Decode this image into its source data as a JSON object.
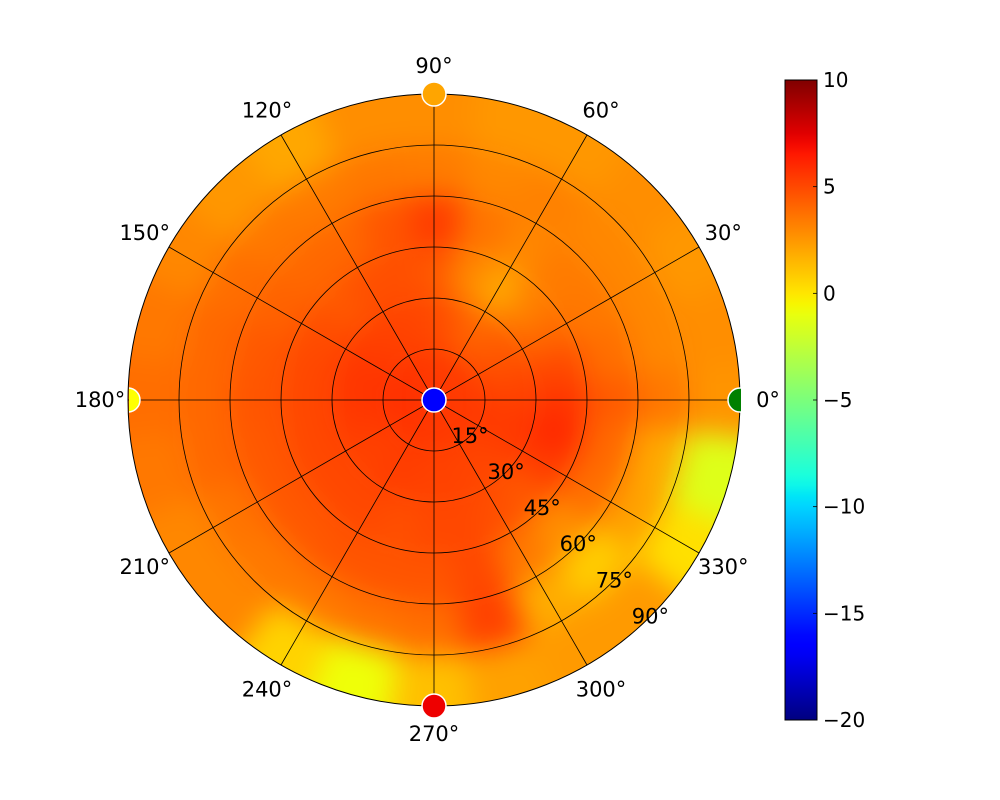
{
  "chart_data": {
    "type": "heatmap",
    "projection": "polar",
    "grid": true,
    "rlim": [
      0,
      90
    ],
    "theta_ticks": [
      0,
      30,
      60,
      90,
      120,
      150,
      180,
      210,
      240,
      270,
      300,
      330
    ],
    "theta_tick_labels": [
      "0°",
      "30°",
      "60°",
      "90°",
      "120°",
      "150°",
      "180°",
      "210°",
      "240°",
      "270°",
      "300°",
      "330°"
    ],
    "r_ticks": [
      15,
      30,
      45,
      60,
      75,
      90
    ],
    "r_tick_labels": [
      "15°",
      "30°",
      "45°",
      "60°",
      "75°",
      "90°"
    ],
    "colormap": "jet",
    "clim": [
      -20,
      10
    ],
    "colorbar": {
      "location": "right",
      "ticks": [
        10,
        5,
        0,
        -5,
        -10,
        -15,
        -20
      ],
      "tick_labels": [
        "10",
        "5",
        "0",
        "−5",
        "−10",
        "−15",
        "−20"
      ]
    },
    "theta_centers": [
      0,
      15,
      30,
      45,
      60,
      75,
      90,
      105,
      120,
      135,
      150,
      165,
      180,
      195,
      210,
      225,
      240,
      255,
      270,
      285,
      300,
      315,
      330,
      345
    ],
    "r_centers": [
      7.5,
      22.5,
      37.5,
      52.5,
      67.5,
      82.5
    ],
    "values": [
      [
        5.5,
        5.5,
        5.4,
        5.4,
        5.4,
        5.5,
        5.5,
        5.5,
        5.6,
        5.6,
        5.7,
        5.8,
        5.8,
        5.8,
        5.7,
        5.6,
        5.6,
        5.6,
        5.5,
        5.5,
        5.5,
        5.5,
        5.5,
        5.6
      ],
      [
        5.2,
        5.0,
        4.6,
        4.4,
        4.0,
        4.5,
        5.0,
        5.1,
        5.2,
        5.3,
        5.5,
        5.6,
        5.6,
        5.5,
        5.3,
        5.2,
        5.4,
        5.3,
        5.2,
        5.2,
        5.1,
        5.1,
        5.4,
        5.5
      ],
      [
        5.6,
        5.0,
        4.0,
        3.2,
        2.0,
        3.0,
        4.5,
        4.8,
        4.8,
        4.5,
        4.9,
        5.0,
        5.0,
        5.0,
        5.0,
        5.0,
        5.0,
        4.8,
        5.0,
        5.0,
        4.8,
        4.5,
        5.4,
        6.0
      ],
      [
        4.4,
        3.8,
        3.5,
        3.4,
        3.0,
        3.6,
        5.4,
        4.6,
        4.0,
        4.0,
        4.2,
        4.5,
        4.6,
        4.5,
        4.5,
        4.5,
        4.6,
        4.6,
        4.6,
        5.0,
        3.5,
        2.8,
        3.8,
        4.0
      ],
      [
        3.5,
        3.0,
        3.0,
        3.0,
        3.2,
        3.0,
        3.4,
        3.5,
        3.4,
        3.5,
        3.8,
        4.0,
        4.0,
        4.0,
        3.6,
        3.5,
        3.5,
        3.6,
        3.8,
        5.2,
        1.8,
        0.8,
        2.2,
        2.0
      ],
      [
        2.6,
        2.8,
        2.5,
        2.8,
        2.5,
        2.5,
        2.8,
        2.8,
        2.0,
        2.5,
        3.0,
        3.5,
        3.8,
        3.5,
        3.0,
        3.0,
        0.6,
        -0.8,
        1.2,
        2.2,
        2.4,
        2.4,
        0.2,
        -1.4
      ]
    ],
    "markers": [
      {
        "theta": 90,
        "r": 90,
        "color": "#ffa500"
      },
      {
        "theta": 0,
        "r": 90,
        "color": "#008000"
      },
      {
        "theta": 180,
        "r": 90,
        "color": "#ffff00"
      },
      {
        "theta": 270,
        "r": 90,
        "color": "#ee0000"
      },
      {
        "theta": 0,
        "r": 0,
        "color": "#0000ff"
      }
    ]
  }
}
